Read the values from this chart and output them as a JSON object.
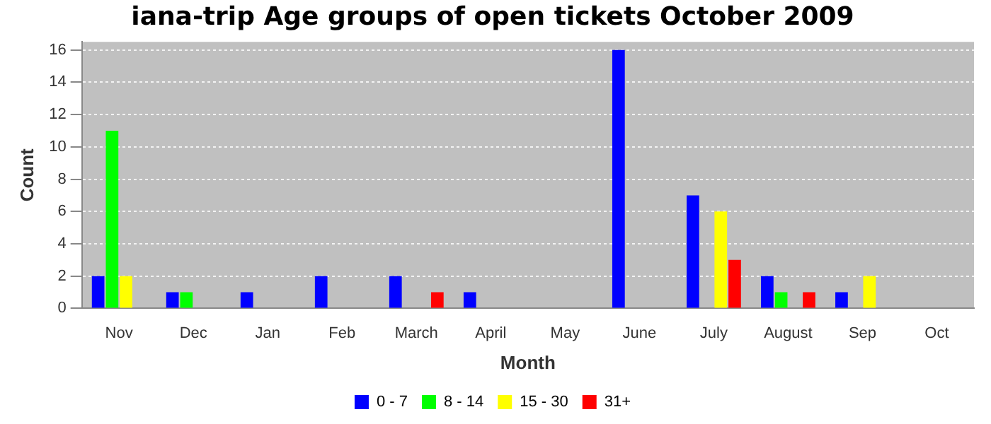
{
  "chart_data": {
    "type": "bar",
    "title": "iana-trip Age groups of open tickets October 2009",
    "xlabel": "Month",
    "ylabel": "Count",
    "categories": [
      "Nov",
      "Dec",
      "Jan",
      "Feb",
      "March",
      "April",
      "May",
      "June",
      "July",
      "August",
      "Sep",
      "Oct"
    ],
    "series": [
      {
        "name": "0 - 7",
        "color": "#0000ff",
        "values": [
          2,
          1,
          1,
          2,
          2,
          1,
          0,
          16,
          7,
          2,
          1,
          0
        ]
      },
      {
        "name": "8 - 14",
        "color": "#00ff00",
        "values": [
          11,
          1,
          0,
          0,
          0,
          0,
          0,
          0,
          0,
          1,
          0,
          0
        ]
      },
      {
        "name": "15 - 30",
        "color": "#ffff00",
        "values": [
          2,
          0,
          0,
          0,
          0,
          0,
          0,
          0,
          6,
          0,
          2,
          0
        ]
      },
      {
        "name": "31+",
        "color": "#ff0000",
        "values": [
          0,
          0,
          0,
          0,
          1,
          0,
          0,
          0,
          3,
          1,
          0,
          0
        ]
      }
    ],
    "ylim": [
      0,
      16.5
    ],
    "yticks": [
      0,
      2,
      4,
      6,
      8,
      10,
      12,
      14,
      16
    ],
    "grid": "y",
    "legend": "bottom"
  }
}
